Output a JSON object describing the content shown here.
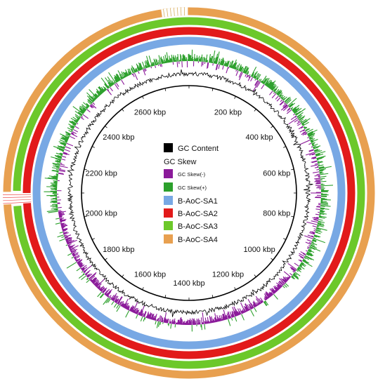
{
  "genome": {
    "total_kbp": 2800,
    "tick_labels": [
      {
        "kbp": 200,
        "label": "200 kbp"
      },
      {
        "kbp": 400,
        "label": "400 kbp"
      },
      {
        "kbp": 600,
        "label": "600 kbp"
      },
      {
        "kbp": 800,
        "label": "800 kbp"
      },
      {
        "kbp": 1000,
        "label": "1000 kbp"
      },
      {
        "kbp": 1200,
        "label": "1200 kbp"
      },
      {
        "kbp": 1400,
        "label": "1400 kbp"
      },
      {
        "kbp": 1600,
        "label": "1600 kbp"
      },
      {
        "kbp": 1800,
        "label": "1800 kbp"
      },
      {
        "kbp": 2000,
        "label": "2000 kbp"
      },
      {
        "kbp": 2200,
        "label": "2200 kbp"
      },
      {
        "kbp": 2400,
        "label": "2400 kbp"
      },
      {
        "kbp": 2600,
        "label": "2600 kbp"
      }
    ]
  },
  "rings": [
    {
      "name": "B-AoC-SA4",
      "color": "#e8a050"
    },
    {
      "name": "B-AoC-SA3",
      "color": "#6cc82a"
    },
    {
      "name": "B-AoC-SA2",
      "color": "#e21a1a"
    },
    {
      "name": "B-AoC-SA1",
      "color": "#78a8e4"
    }
  ],
  "gc_skew": {
    "positive_color": "#2ca02c",
    "negative_color": "#8b1a9a"
  },
  "gc_content": {
    "color": "#000000"
  },
  "legend": {
    "gc_content": {
      "label": "GC Content",
      "color": "#000000"
    },
    "gc_skew_title": "GC Skew",
    "gc_skew_neg": {
      "label": "GC Skew(-)",
      "color": "#8b1a9a"
    },
    "gc_skew_pos": {
      "label": "GC Skew(+)",
      "color": "#2ca02c"
    },
    "sa1": {
      "label": "B-AoC-SA1",
      "color": "#78a8e4"
    },
    "sa2": {
      "label": "B-AoC-SA2",
      "color": "#e21a1a"
    },
    "sa3": {
      "label": "B-AoC-SA3",
      "color": "#6cc82a"
    },
    "sa4": {
      "label": "B-AoC-SA4",
      "color": "#e8a050"
    }
  }
}
